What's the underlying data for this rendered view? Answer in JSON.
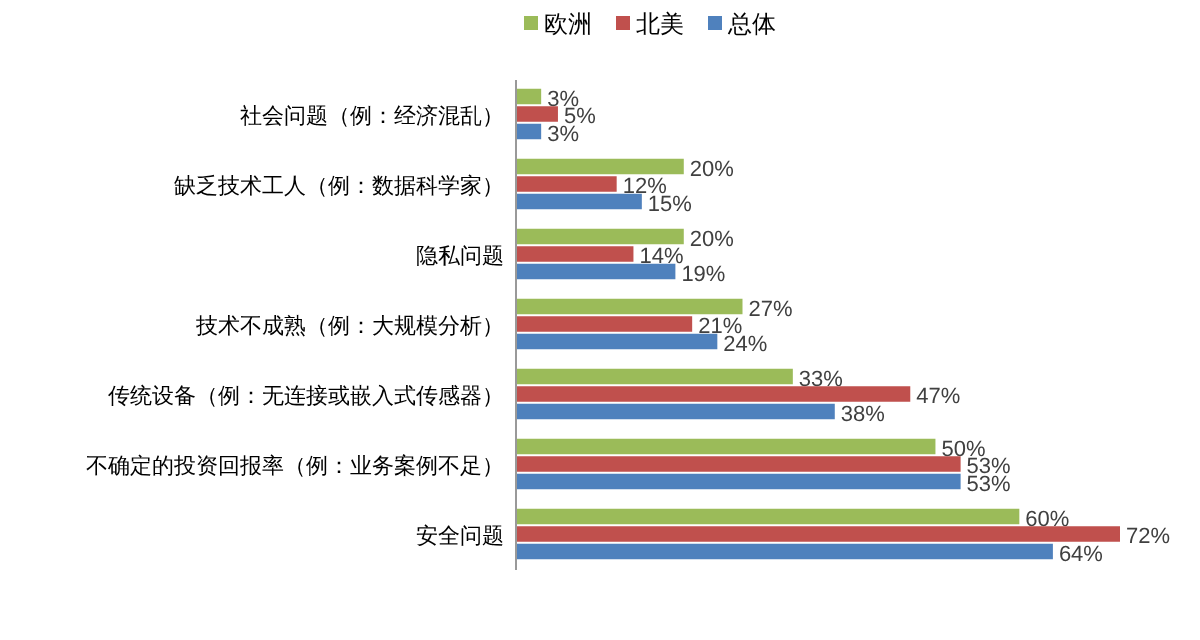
{
  "chart_data": {
    "type": "bar",
    "orientation": "horizontal",
    "legend": "top",
    "categories": [
      "社会问题（例：经济混乱）",
      "缺乏技术工人（例：数据科学家）",
      "隐私问题",
      "技术不成熟（例：大规模分析）",
      "传统设备（例：无连接或嵌入式传感器）",
      "不确定的投资回报率（例：业务案例不足）",
      "安全问题"
    ],
    "series": [
      {
        "name": "欧洲",
        "color": "#9bbb59",
        "values": [
          3,
          20,
          20,
          27,
          33,
          50,
          60
        ],
        "value_labels": [
          "3%",
          "20%",
          "20%",
          "27%",
          "33%",
          "50%",
          "60%"
        ]
      },
      {
        "name": "北美",
        "color": "#c0504d",
        "values": [
          5,
          12,
          14,
          21,
          47,
          53,
          72
        ],
        "value_labels": [
          "5%",
          "12%",
          "14%",
          "21%",
          "47%",
          "53%",
          "72%"
        ]
      },
      {
        "name": "总体",
        "color": "#4f81bd",
        "values": [
          3,
          15,
          19,
          24,
          38,
          53,
          64
        ],
        "value_labels": [
          "3%",
          "15%",
          "19%",
          "24%",
          "38%",
          "53%",
          "64%"
        ]
      }
    ]
  }
}
